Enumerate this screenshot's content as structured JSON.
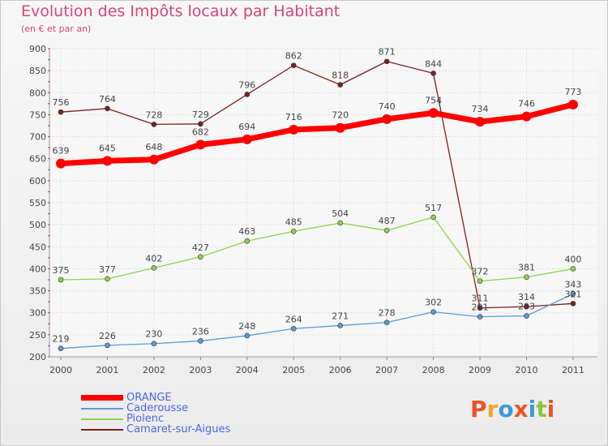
{
  "title": "Evolution des Impôts locaux par Habitant",
  "subtitle": "(en € et par an)",
  "logo": {
    "text": "Proxiti",
    "letter_colors": [
      "#e8562a",
      "#f2a623",
      "#3b9bd6",
      "#e8562a",
      "#3b9bd6",
      "#8cc63f",
      "#e8562a"
    ]
  },
  "chart_data": {
    "type": "line",
    "x": [
      "2000",
      "2001",
      "2002",
      "2003",
      "2004",
      "2005",
      "2006",
      "2007",
      "2008",
      "2009",
      "2010",
      "2011"
    ],
    "ylim": [
      200,
      900
    ],
    "yticks": [
      200,
      250,
      300,
      350,
      400,
      450,
      500,
      550,
      600,
      650,
      700,
      750,
      800,
      850,
      900
    ],
    "grid": true,
    "legend_position": "bottom-left",
    "series": [
      {
        "name": "ORANGE",
        "color": "#ff0000",
        "values": [
          639,
          645,
          648,
          682,
          694,
          716,
          720,
          740,
          754,
          734,
          746,
          773
        ],
        "labels": [
          "639",
          "645",
          "648",
          "682",
          "694",
          "716",
          "720",
          "740",
          "754",
          "734",
          "746",
          "773"
        ]
      },
      {
        "name": "Caderousse",
        "color": "#5b9bd5",
        "values": [
          219,
          226,
          230,
          236,
          248,
          264,
          271,
          278,
          302,
          291,
          293,
          343
        ],
        "labels": [
          "219",
          "226",
          "230",
          "236",
          "248",
          "264",
          "271",
          "278",
          "302",
          "291",
          "293",
          "343"
        ]
      },
      {
        "name": "Piolenc",
        "color": "#8fd14f",
        "values": [
          375,
          377,
          402,
          427,
          463,
          485,
          504,
          487,
          517,
          372,
          381,
          400
        ],
        "labels": [
          "375",
          "377",
          "402",
          "427",
          "463",
          "485",
          "504",
          "487",
          "517",
          "372",
          "381",
          "400"
        ]
      },
      {
        "name": "Camaret-sur-Aigues",
        "color": "#7b1f1f",
        "values": [
          756,
          764,
          728,
          729,
          796,
          862,
          818,
          871,
          844,
          311,
          314,
          321
        ],
        "labels": [
          "756",
          "764",
          "728",
          "729",
          "796",
          "862",
          "818",
          "871",
          "844",
          "311",
          "314",
          "321"
        ]
      }
    ]
  }
}
